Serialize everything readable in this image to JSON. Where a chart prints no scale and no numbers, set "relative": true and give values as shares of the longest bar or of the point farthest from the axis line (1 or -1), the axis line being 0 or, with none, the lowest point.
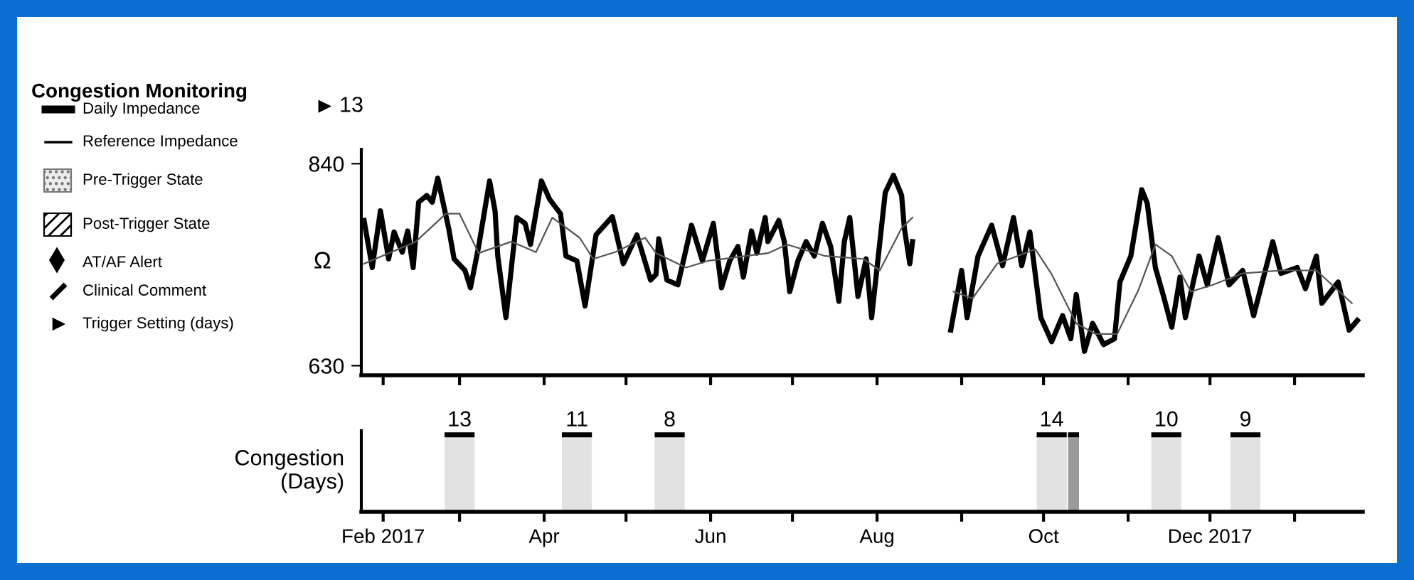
{
  "chart_data": [
    {
      "type": "other",
      "title": "Congestion Monitoring",
      "annotations": [
        "Daily Impedance",
        "Reference Impedance",
        "Pre-Trigger State",
        "Post-Trigger State",
        "AT/AF Alert",
        "Clinical Comment",
        "Trigger Setting (days)"
      ]
    },
    {
      "type": "line",
      "ylabel": "Ω",
      "xlim": [
        "2017-01-24",
        "2018-01-26"
      ],
      "ylim": [
        620,
        855
      ],
      "yticks": [
        630,
        840
      ],
      "tick_labels": "y",
      "xticks": [
        {
          "value": "2017-02-01",
          "label": null
        },
        {
          "value": "2017-03-01",
          "label": null
        },
        {
          "value": "2017-04-01",
          "label": null
        },
        {
          "value": "2017-05-01",
          "label": null
        },
        {
          "value": "2017-06-01",
          "label": null
        },
        {
          "value": "2017-07-01",
          "label": null
        },
        {
          "value": "2017-08-01",
          "label": null
        },
        {
          "value": "2017-09-01",
          "label": null
        },
        {
          "value": "2017-10-01",
          "label": null
        },
        {
          "value": "2017-11-01",
          "label": null
        },
        {
          "value": "2017-12-01",
          "label": null
        },
        {
          "value": "2018-01-01",
          "label": null
        }
      ],
      "annotations": [
        "13"
      ],
      "series": [
        {
          "color": "#000000",
          "x": [
            "2017-01-25",
            "2017-01-28",
            "2017-01-31",
            "2017-02-03",
            "2017-02-05",
            "2017-02-08",
            "2017-02-10",
            "2017-02-12",
            "2017-02-14",
            "2017-02-17",
            "2017-02-19",
            "2017-02-21",
            "2017-02-25",
            "2017-02-27",
            "2017-03-03",
            "2017-03-05",
            "2017-03-08",
            "2017-03-12",
            "2017-03-14",
            "2017-03-15",
            "2017-03-18",
            "2017-03-22",
            "2017-03-25",
            "2017-03-27",
            "2017-03-31",
            "2017-04-03",
            "2017-04-07",
            "2017-04-09",
            "2017-04-13",
            "2017-04-16",
            "2017-04-20",
            "2017-04-26",
            "2017-04-30",
            "2017-05-05",
            "2017-05-10",
            "2017-05-12",
            "2017-05-13",
            "2017-05-16",
            "2017-05-20",
            "2017-05-25",
            "2017-05-29",
            "2017-06-02",
            "2017-06-05",
            "2017-06-08",
            "2017-06-11",
            "2017-06-13",
            "2017-06-16",
            "2017-06-18",
            "2017-06-21",
            "2017-06-22",
            "2017-06-26",
            "2017-06-28",
            "2017-06-30",
            "2017-07-03",
            "2017-07-06",
            "2017-07-09",
            "2017-07-12",
            "2017-07-15",
            "2017-07-18",
            "2017-07-20",
            "2017-07-22",
            "2017-07-25",
            "2017-07-28",
            "2017-07-30",
            "2017-08-04",
            "2017-08-07",
            "2017-08-10",
            "2017-08-11",
            "2017-08-13",
            "2017-08-14",
            "2017-08-21",
            "2017-08-28",
            "2017-09-01",
            "2017-09-03",
            "2017-09-07",
            "2017-09-12",
            "2017-09-16",
            "2017-09-20",
            "2017-09-23",
            "2017-09-26",
            "2017-09-30",
            "2017-10-04",
            "2017-10-08",
            "2017-10-11",
            "2017-10-13",
            "2017-10-16",
            "2017-10-19",
            "2017-10-23",
            "2017-10-27",
            "2017-10-29",
            "2017-11-02",
            "2017-11-06",
            "2017-11-08",
            "2017-11-11",
            "2017-11-14",
            "2017-11-17",
            "2017-11-20",
            "2017-11-22",
            "2017-11-27",
            "2017-11-30",
            "2017-12-04",
            "2017-12-08",
            "2017-12-13",
            "2017-12-17",
            "2017-12-24",
            "2017-12-27",
            "2018-01-02",
            "2018-01-05",
            "2018-01-09",
            "2018-01-11",
            "2018-01-17",
            "2018-01-21",
            "2018-01-24"
          ],
          "values": [
            781,
            732,
            791,
            741,
            769,
            748,
            770,
            732,
            800,
            807,
            800,
            825,
            773,
            741,
            729,
            711,
            754,
            822,
            791,
            744,
            680,
            784,
            778,
            756,
            822,
            803,
            788,
            744,
            739,
            692,
            766,
            785,
            736,
            766,
            719,
            725,
            762,
            719,
            714,
            776,
            739,
            778,
            711,
            739,
            754,
            722,
            770,
            747,
            784,
            759,
            781,
            759,
            707,
            739,
            759,
            744,
            778,
            754,
            697,
            759,
            784,
            702,
            741,
            680,
            810,
            828,
            807,
            773,
            736,
            759,
            null,
            667,
            729,
            680,
            744,
            776,
            734,
            784,
            734,
            769,
            680,
            655,
            682,
            658,
            704,
            645,
            674,
            652,
            658,
            717,
            744,
            813,
            799,
            732,
            702,
            670,
            722,
            680,
            744,
            714,
            763,
            714,
            729,
            682,
            759,
            726,
            732,
            710,
            744,
            695,
            717,
            667,
            677
          ]
        },
        {
          "color": "#555555",
          "x": [
            "2017-01-25",
            "2017-02-13",
            "2017-02-24",
            "2017-03-01",
            "2017-03-08",
            "2017-03-20",
            "2017-03-29",
            "2017-04-04",
            "2017-04-14",
            "2017-04-19",
            "2017-04-27",
            "2017-05-08",
            "2017-05-12",
            "2017-05-23",
            "2017-05-31",
            "2017-06-22",
            "2017-06-29",
            "2017-07-13",
            "2017-07-27",
            "2017-08-02",
            "2017-08-10",
            "2017-08-14",
            "2017-08-21",
            "2017-08-29",
            "2017-09-05",
            "2017-09-14",
            "2017-09-28",
            "2017-10-04",
            "2017-10-13",
            "2017-10-20",
            "2017-10-28",
            "2017-11-05",
            "2017-11-11",
            "2017-11-17",
            "2017-11-24",
            "2017-12-02",
            "2017-12-13",
            "2017-12-27",
            "2018-01-09",
            "2018-01-22"
          ],
          "values": [
            736,
            759,
            788,
            788,
            747,
            759,
            748,
            784,
            763,
            741,
            748,
            763,
            747,
            732,
            739,
            747,
            756,
            744,
            741,
            729,
            773,
            784,
            null,
            707,
            700,
            736,
            751,
            725,
            674,
            663,
            663,
            710,
            756,
            744,
            707,
            714,
            726,
            729,
            729,
            695
          ]
        }
      ]
    },
    {
      "type": "bar",
      "relative": true,
      "ylabel": "Congestion\n(Days)",
      "xlim": [
        "2017-01-24",
        "2018-01-26"
      ],
      "tick_labels": "x",
      "xticks": [
        {
          "value": "2017-02-01",
          "label": "Feb 2017"
        },
        {
          "value": "2017-03-01",
          "label": null
        },
        {
          "value": "2017-04-01",
          "label": "Apr"
        },
        {
          "value": "2017-05-01",
          "label": null
        },
        {
          "value": "2017-06-01",
          "label": "Jun"
        },
        {
          "value": "2017-07-01",
          "label": null
        },
        {
          "value": "2017-08-01",
          "label": "Aug"
        },
        {
          "value": "2017-09-01",
          "label": null
        },
        {
          "value": "2017-10-01",
          "label": "Oct"
        },
        {
          "value": "2017-11-01",
          "label": null
        },
        {
          "value": "2017-12-01",
          "label": "Dec 2017"
        },
        {
          "value": "2018-01-01",
          "label": null
        }
      ],
      "series": [
        {
          "color": "#e2e2e2",
          "x": [
            "2017-03-01",
            "2017-04-13",
            "2017-05-17",
            "2017-10-04",
            "2017-11-15",
            "2017-12-14"
          ],
          "values": [
            1,
            1,
            1,
            1,
            1,
            1
          ]
        },
        {
          "color": "#9a9a9a",
          "x": [
            "2017-10-12"
          ],
          "values": [
            1
          ]
        }
      ],
      "annotations": [
        {
          "text": "13",
          "x": "2017-03-01",
          "y": 1
        },
        {
          "text": "11",
          "x": "2017-04-13",
          "y": 1
        },
        {
          "text": "8",
          "x": "2017-05-17",
          "y": 1
        },
        {
          "text": "14",
          "x": "2017-10-04",
          "y": 1
        },
        {
          "text": "10",
          "x": "2017-11-15",
          "y": 1
        },
        {
          "text": "9",
          "x": "2017-12-14",
          "y": 1
        }
      ]
    }
  ]
}
